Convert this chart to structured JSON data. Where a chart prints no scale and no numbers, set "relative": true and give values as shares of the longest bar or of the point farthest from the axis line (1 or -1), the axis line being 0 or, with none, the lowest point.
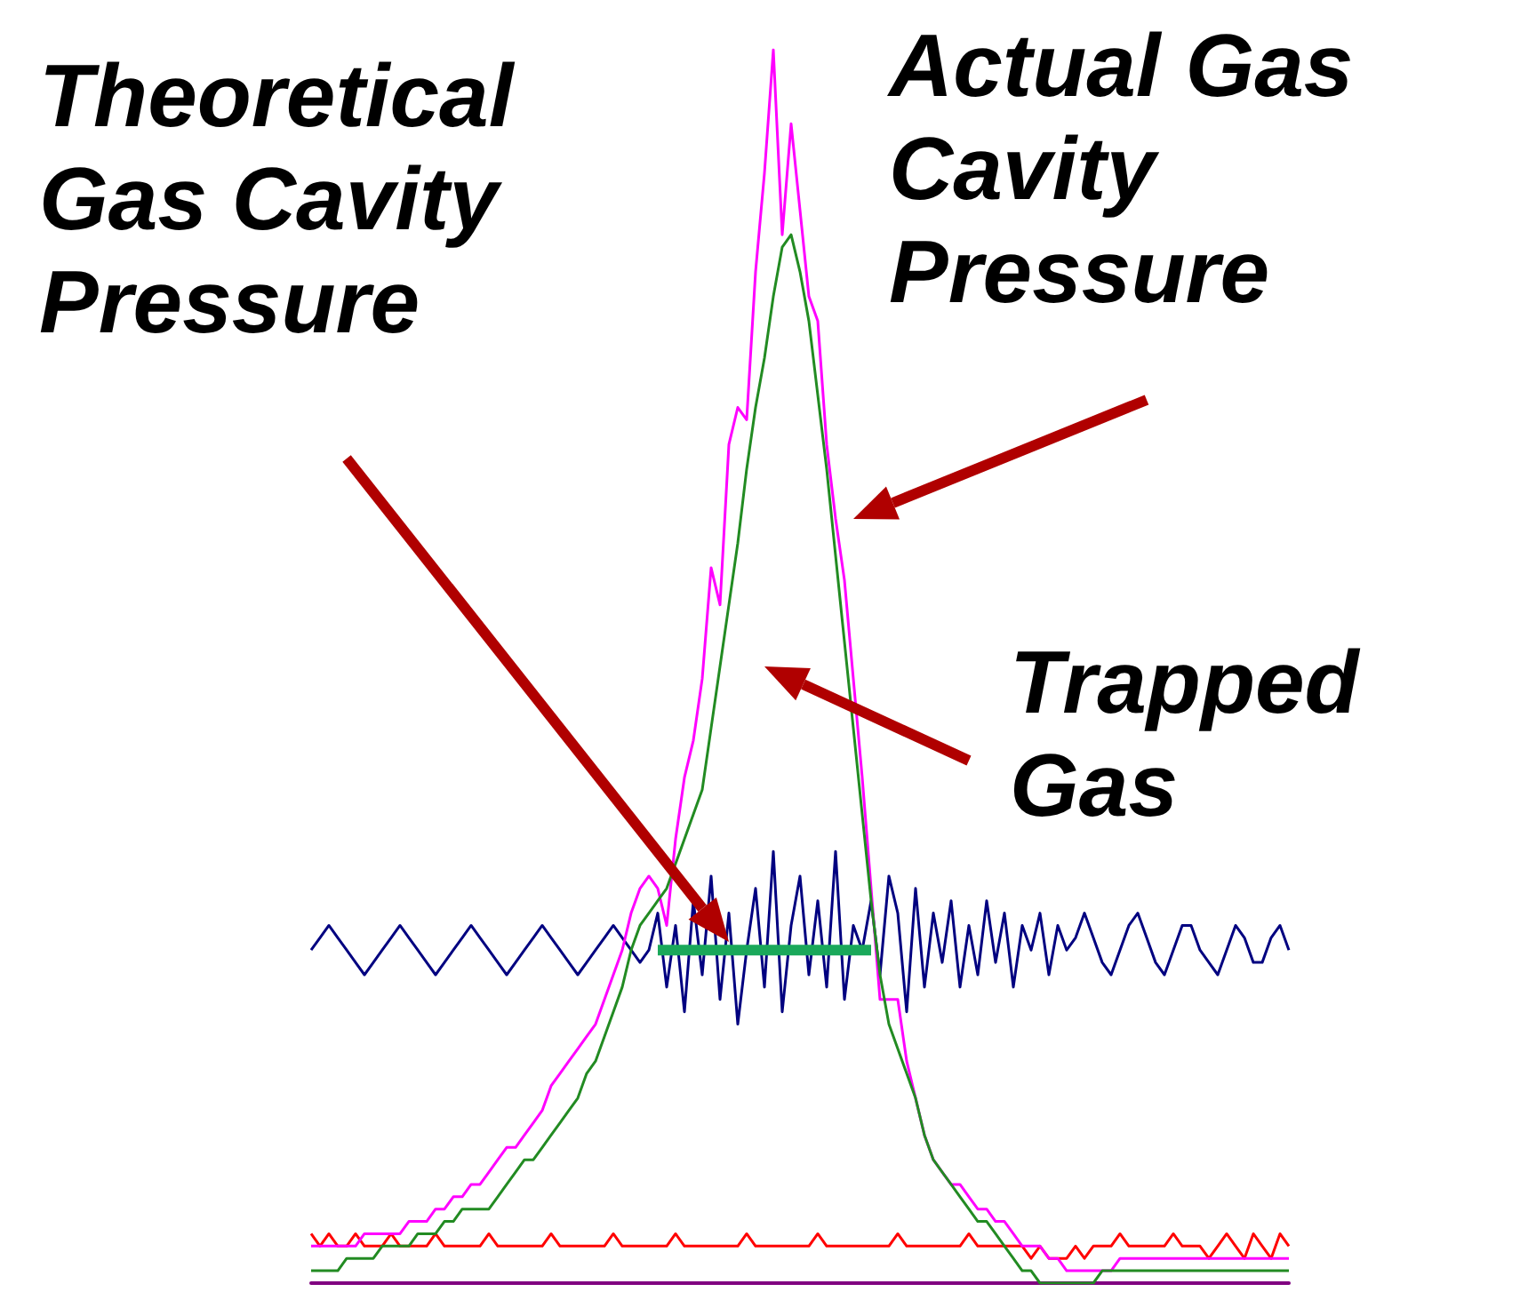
{
  "chart_data": {
    "type": "line",
    "relative": true,
    "categories": [
      null,
      null,
      null,
      null,
      null,
      null,
      null,
      null,
      null,
      null,
      null,
      null,
      null,
      null,
      null,
      null,
      null,
      null,
      null,
      null,
      null,
      null,
      null,
      null,
      null,
      null,
      null,
      null,
      null,
      null,
      null,
      null,
      null,
      null,
      null,
      null,
      null,
      null,
      null,
      null,
      null,
      null,
      null,
      null,
      null,
      null,
      null,
      null,
      null,
      null,
      null,
      null,
      null,
      null,
      null,
      null,
      null,
      null,
      null,
      null,
      null,
      null,
      null,
      null,
      null,
      null,
      null,
      null,
      null,
      null,
      null,
      null,
      null,
      null,
      null,
      null,
      null,
      null,
      null,
      null,
      null,
      null,
      null,
      null,
      null,
      null,
      null,
      null,
      null,
      null,
      null,
      null,
      null,
      null,
      null,
      null,
      null,
      null,
      null,
      null,
      null,
      null,
      null,
      null,
      null,
      null,
      null,
      null,
      null,
      null,
      null
    ],
    "series": [
      {
        "color": "#ff0000",
        "values": [
          0.04,
          0.03,
          0.04,
          0.03,
          0.03,
          0.04,
          0.03,
          0.03,
          0.03,
          0.04,
          0.03,
          0.03,
          0.03,
          0.03,
          0.04,
          0.03,
          0.03,
          0.03,
          0.03,
          0.03,
          0.04,
          0.03,
          0.03,
          0.03,
          0.03,
          0.03,
          0.03,
          0.04,
          0.03,
          0.03,
          0.03,
          0.03,
          0.03,
          0.03,
          0.04,
          0.03,
          0.03,
          0.03,
          0.03,
          0.03,
          0.03,
          0.04,
          0.03,
          0.03,
          0.03,
          0.03,
          0.03,
          0.03,
          0.03,
          0.04,
          0.03,
          0.03,
          0.03,
          0.03,
          0.03,
          0.03,
          0.03,
          0.04,
          0.03,
          0.03,
          0.03,
          0.03,
          0.03,
          0.03,
          0.03,
          0.03,
          0.04,
          0.03,
          0.03,
          0.03,
          0.03,
          0.03,
          0.03,
          0.03,
          0.04,
          0.03,
          0.03,
          0.03,
          0.03,
          0.03,
          0.03,
          0.02,
          0.03,
          0.02,
          0.02,
          0.02,
          0.03,
          0.02,
          0.03,
          0.03,
          0.03,
          0.04,
          0.03,
          0.03,
          0.03,
          0.03,
          0.03,
          0.04,
          0.03,
          0.03,
          0.03,
          0.02,
          0.03,
          0.04,
          0.03,
          0.02,
          0.04,
          0.03,
          0.02,
          0.04,
          0.03
        ]
      },
      {
        "color": "#000080",
        "values": [
          0.27,
          0.28,
          0.29,
          0.28,
          0.27,
          0.26,
          0.25,
          0.26,
          0.27,
          0.28,
          0.29,
          0.28,
          0.27,
          0.26,
          0.25,
          0.26,
          0.27,
          0.28,
          0.29,
          0.28,
          0.27,
          0.26,
          0.25,
          0.26,
          0.27,
          0.28,
          0.29,
          0.28,
          0.27,
          0.26,
          0.25,
          0.26,
          0.27,
          0.28,
          0.29,
          0.28,
          0.27,
          0.26,
          0.27,
          0.3,
          0.24,
          0.29,
          0.22,
          0.31,
          0.25,
          0.33,
          0.23,
          0.3,
          0.21,
          0.27,
          0.32,
          0.24,
          0.35,
          0.22,
          0.29,
          0.33,
          0.25,
          0.31,
          0.24,
          0.35,
          0.23,
          0.29,
          0.27,
          0.31,
          0.25,
          0.33,
          0.3,
          0.22,
          0.32,
          0.24,
          0.3,
          0.26,
          0.31,
          0.24,
          0.29,
          0.25,
          0.31,
          0.26,
          0.3,
          0.24,
          0.29,
          0.27,
          0.3,
          0.25,
          0.29,
          0.27,
          0.28,
          0.3,
          0.28,
          0.26,
          0.25,
          0.27,
          0.29,
          0.3,
          0.28,
          0.26,
          0.25,
          0.27,
          0.29,
          0.29,
          0.27,
          0.26,
          0.25,
          0.27,
          0.29,
          0.28,
          0.26,
          0.26,
          0.28,
          0.29,
          0.27
        ]
      },
      {
        "color": "#ff00ff",
        "values": [
          0.03,
          0.03,
          0.03,
          0.03,
          0.03,
          0.03,
          0.04,
          0.04,
          0.04,
          0.04,
          0.04,
          0.05,
          0.05,
          0.05,
          0.06,
          0.06,
          0.07,
          0.07,
          0.08,
          0.08,
          0.09,
          0.1,
          0.11,
          0.11,
          0.12,
          0.13,
          0.14,
          0.16,
          0.17,
          0.18,
          0.19,
          0.2,
          0.21,
          0.23,
          0.25,
          0.27,
          0.3,
          0.32,
          0.33,
          0.32,
          0.29,
          0.36,
          0.41,
          0.44,
          0.49,
          0.58,
          0.55,
          0.68,
          0.71,
          0.7,
          0.82,
          0.9,
          1,
          0.85,
          0.94,
          0.87,
          0.8,
          0.78,
          0.68,
          0.62,
          0.57,
          0.49,
          0.41,
          0.32,
          0.23,
          0.23,
          0.23,
          0.18,
          0.15,
          0.12,
          0.1,
          0.09,
          0.08,
          0.08,
          0.07,
          0.06,
          0.06,
          0.05,
          0.05,
          0.04,
          0.03,
          0.03,
          0.03,
          0.02,
          0.02,
          0.01,
          0.01,
          0.01,
          0.01,
          0.01,
          0.01,
          0.02,
          0.02,
          0.02,
          0.02,
          0.02,
          0.02,
          0.02,
          0.02,
          0.02,
          0.02,
          0.02,
          0.02,
          0.02,
          0.02,
          0.02,
          0.02,
          0.02,
          0.02,
          0.02,
          0.02
        ]
      },
      {
        "color": "#228b22",
        "values": [
          0.01,
          0.01,
          0.01,
          0.01,
          0.02,
          0.02,
          0.02,
          0.02,
          0.03,
          0.03,
          0.03,
          0.03,
          0.04,
          0.04,
          0.04,
          0.05,
          0.05,
          0.06,
          0.06,
          0.06,
          0.06,
          0.07,
          0.08,
          0.09,
          0.1,
          0.1,
          0.11,
          0.12,
          0.13,
          0.14,
          0.15,
          0.17,
          0.18,
          0.2,
          0.22,
          0.24,
          0.27,
          0.29,
          0.3,
          0.31,
          0.32,
          0.34,
          0.36,
          0.38,
          0.4,
          0.45,
          0.5,
          0.55,
          0.6,
          0.66,
          0.71,
          0.75,
          0.8,
          0.84,
          0.85,
          0.82,
          0.78,
          0.72,
          0.66,
          0.59,
          0.52,
          0.45,
          0.38,
          0.31,
          0.25,
          0.21,
          0.19,
          0.17,
          0.15,
          0.12,
          0.1,
          0.09,
          0.08,
          0.07,
          0.06,
          0.05,
          0.05,
          0.04,
          0.03,
          0.02,
          0.01,
          0.01,
          0.0,
          0.0,
          0.0,
          0.0,
          0.0,
          0.0,
          0.0,
          0.01,
          0.01,
          0.01,
          0.01,
          0.01,
          0.01,
          0.01,
          0.01,
          0.01,
          0.01,
          0.01,
          0.01,
          0.01,
          0.01,
          0.01,
          0.01,
          0.01,
          0.01,
          0.01,
          0.01,
          0.01,
          0.01
        ]
      },
      {
        "color": "#1aa85a",
        "values": [
          null,
          null,
          null,
          null,
          null,
          null,
          null,
          null,
          null,
          null,
          null,
          null,
          null,
          null,
          null,
          null,
          null,
          null,
          null,
          null,
          null,
          null,
          null,
          null,
          null,
          null,
          null,
          null,
          null,
          null,
          null,
          null,
          null,
          null,
          null,
          null,
          null,
          null,
          null,
          0.27,
          0.27,
          0.27,
          0.27,
          0.27,
          0.27,
          0.27,
          0.27,
          0.27,
          0.27,
          0.27,
          0.27,
          0.27,
          0.27,
          0.27,
          0.27,
          0.27,
          0.27,
          0.27,
          0.27,
          0.27,
          0.27,
          0.27,
          0.27,
          0.27,
          null,
          null,
          null,
          null,
          null,
          null,
          null,
          null,
          null,
          null,
          null,
          null,
          null,
          null,
          null,
          null,
          null,
          null,
          null,
          null,
          null,
          null,
          null,
          null,
          null,
          null,
          null,
          null,
          null,
          null,
          null,
          null,
          null,
          null,
          null,
          null,
          null,
          null,
          null,
          null,
          null,
          null,
          null,
          null,
          null,
          null,
          null
        ]
      }
    ],
    "annotations": [
      "Theoretical\nGas Cavity\nPressure",
      "Actual Gas\nCavity\nPressure",
      "Trapped\nGas"
    ]
  }
}
